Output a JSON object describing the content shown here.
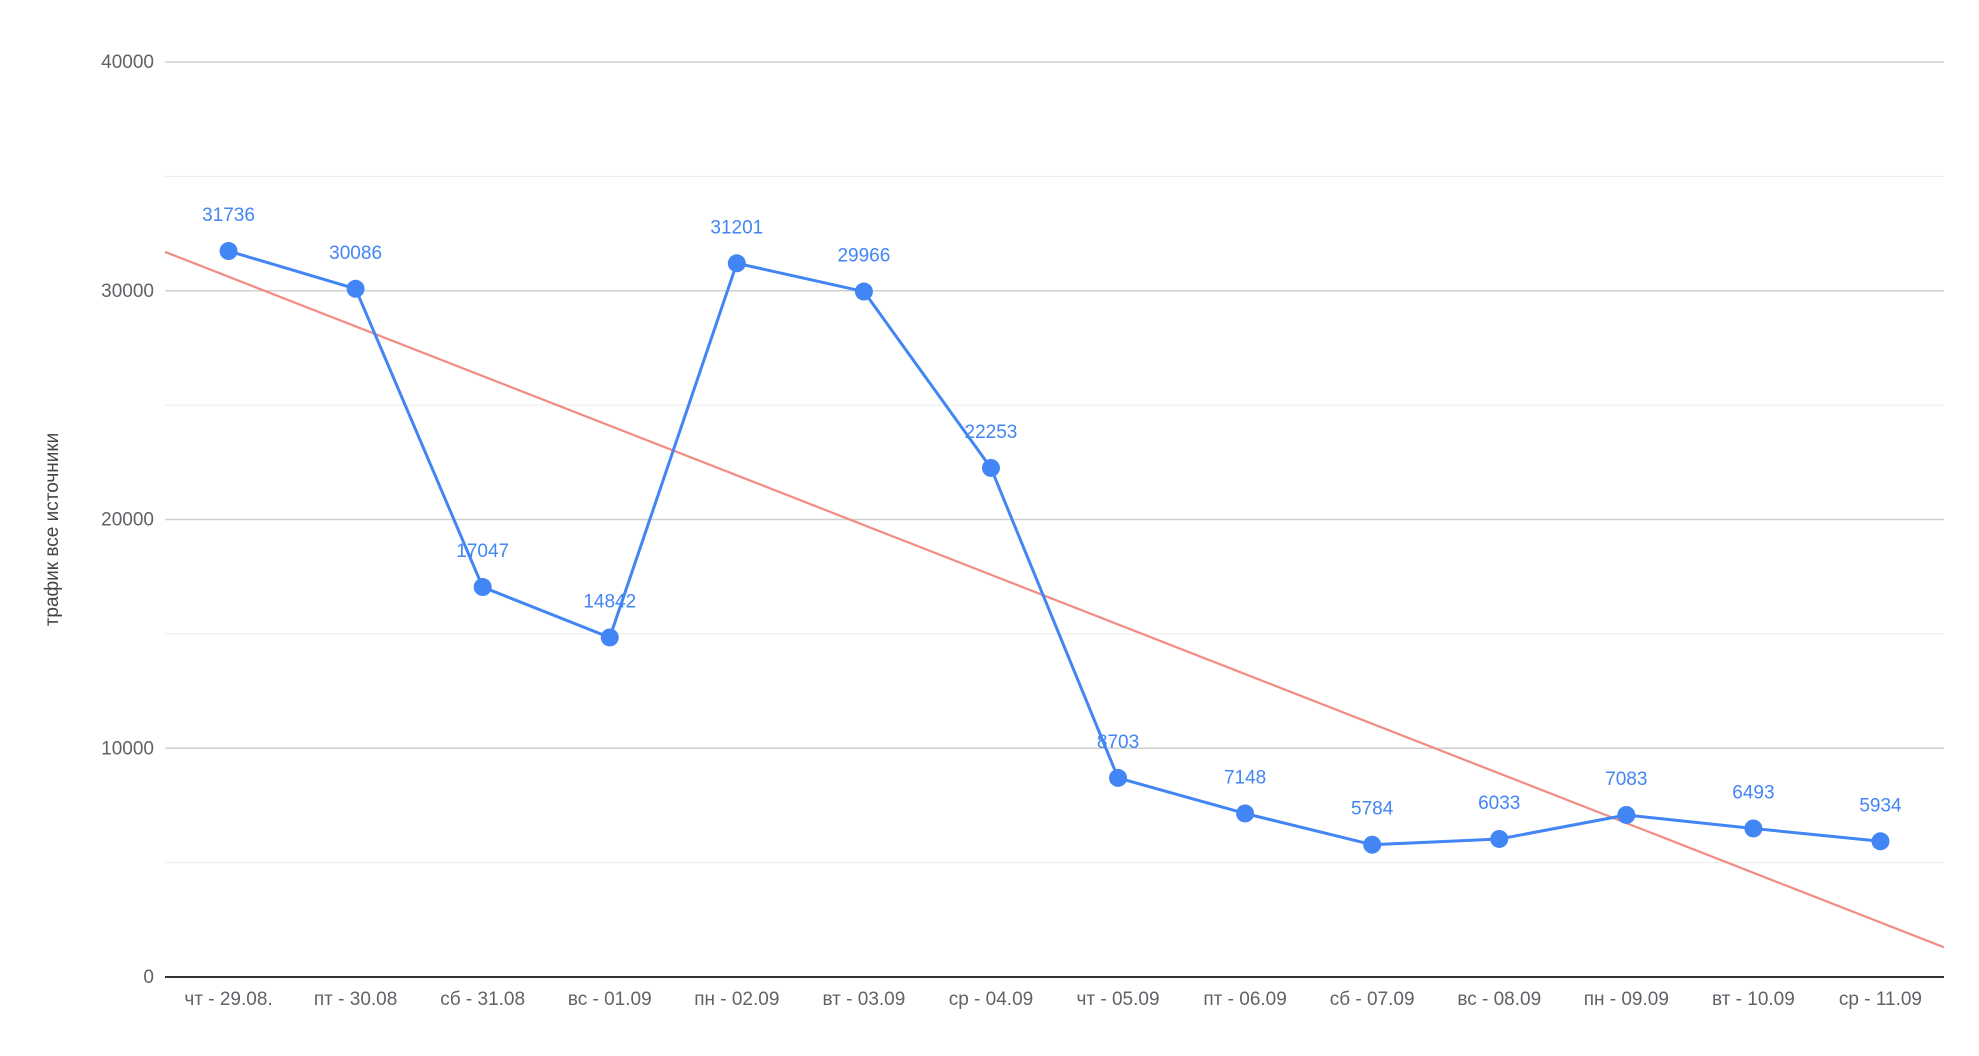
{
  "chart_data": {
    "type": "line",
    "title": "",
    "xlabel": "",
    "ylabel": "трафик все источники",
    "ylim": [
      0,
      40000
    ],
    "y_ticks": [
      0,
      10000,
      20000,
      30000,
      40000
    ],
    "y_tick_labels": [
      "0",
      "10000",
      "20000",
      "30000",
      "40000"
    ],
    "grid": true,
    "legend": "none",
    "categories": [
      "чт - 29.08.",
      "пт - 30.08",
      "сб - 31.08",
      "вс - 01.09",
      "пн - 02.09",
      "вт - 03.09",
      "ср - 04.09",
      "чт - 05.09",
      "пт - 06.09",
      "сб - 07.09",
      "вс - 08.09",
      "пн - 09.09",
      "вт - 10.09",
      "ср - 11.09"
    ],
    "series": [
      {
        "values": [
          31736,
          30086,
          17047,
          14842,
          31201,
          29966,
          22253,
          8703,
          7148,
          5784,
          6033,
          7083,
          6493,
          5934
        ],
        "data_labels": [
          "31736",
          "30086",
          "17047",
          "14842",
          "31201",
          "29966",
          "22253",
          "8703",
          "7148",
          "5784",
          "6033",
          "7083",
          "6493",
          "5934"
        ],
        "color": "#4285f4"
      }
    ],
    "trendline": {
      "type": "linear",
      "color": "#f28b82",
      "start_value": 31700,
      "end_value": 1300
    }
  }
}
